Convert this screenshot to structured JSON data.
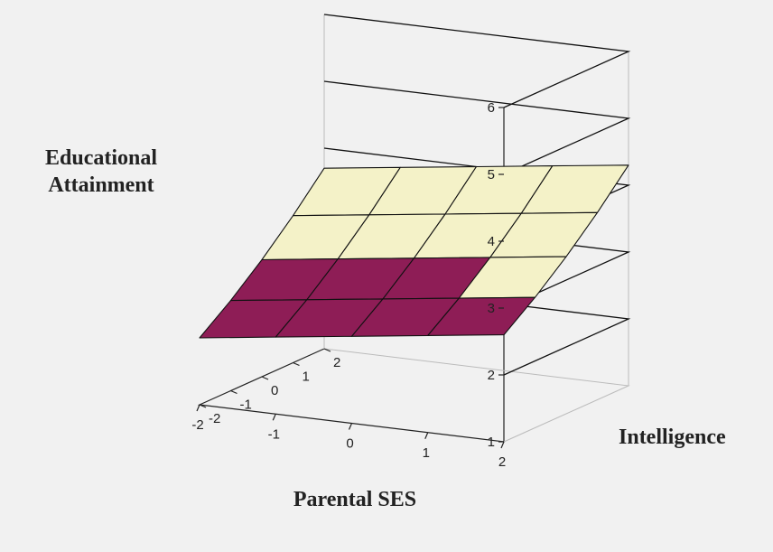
{
  "chart_data": {
    "type": "surface3d",
    "zlabel": "Educational Attainment",
    "zlabel_lines": [
      "Educational",
      "Attainment"
    ],
    "xlabel": "Parental SES",
    "ylabel": "Intelligence",
    "z_ticks": [
      "1",
      "2",
      "3",
      "4",
      "5",
      "6"
    ],
    "z_range": [
      1,
      6
    ],
    "ses_ticks": [
      "2",
      "1",
      "0",
      "-1",
      "-2"
    ],
    "intelligence_ticks": [
      "-2",
      "-1",
      "0",
      "1",
      "2"
    ],
    "ses_values": [
      2,
      1,
      0,
      -1,
      -2
    ],
    "intelligence_values": [
      -2,
      -1,
      0,
      1,
      2
    ],
    "z_values": [
      [
        2.6,
        2.95,
        3.35,
        3.8,
        4.3
      ],
      [
        2.45,
        2.8,
        3.2,
        3.65,
        4.15
      ],
      [
        2.3,
        2.65,
        3.05,
        3.5,
        4.0
      ],
      [
        2.15,
        2.5,
        2.9,
        3.35,
        3.85
      ],
      [
        2.0,
        2.35,
        2.75,
        3.2,
        3.7
      ]
    ],
    "color_bands": [
      {
        "range": [
          1,
          2
        ],
        "color": "#8f8fd2"
      },
      {
        "range": [
          2,
          3
        ],
        "color": "#8e1d56"
      },
      {
        "range": [
          3,
          4
        ],
        "color": "#f4f2c8"
      },
      {
        "range": [
          4,
          5
        ],
        "color": "#9d9dd8"
      }
    ],
    "grid": true
  }
}
